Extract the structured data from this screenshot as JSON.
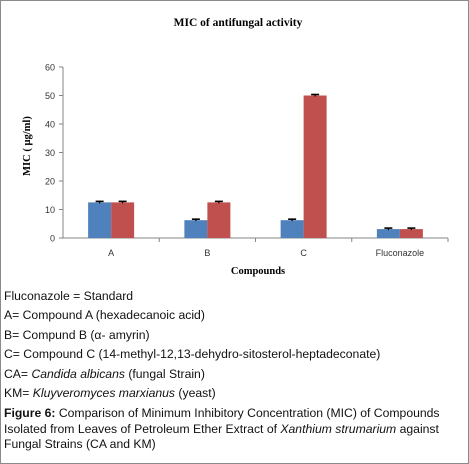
{
  "chart_data": {
    "type": "bar",
    "title": "MIC of antifungal activity",
    "xlabel": "Compounds",
    "ylabel": "MIC ( µg/ml)",
    "categories": [
      "A",
      "B",
      "C",
      "Fluconazole"
    ],
    "series": [
      {
        "values": [
          12.5,
          6.25,
          6.25,
          3.125
        ],
        "color": "#4f81bd"
      },
      {
        "values": [
          12.5,
          12.5,
          50,
          3.125
        ],
        "color": "#c0504d"
      }
    ],
    "ylim": [
      0,
      60
    ],
    "yticks": [
      "0",
      "10",
      "20",
      "30",
      "40",
      "50",
      "60"
    ],
    "error_bars": true,
    "grid": false,
    "legend": "none"
  },
  "captions": {
    "line1": "Fluconazole = Standard",
    "line2": "A= Compound A (hexadecanoic acid)",
    "line3": "B= Compund B (α- amyrin)",
    "line4": "C= Compound C (14-methyl-12,13-dehydro-sitosterol-heptadeconate)",
    "line5_prefix": "CA= ",
    "line5_italic": "Candida albicans",
    "line5_suffix": " (fungal Strain)",
    "line6_prefix": " KM= ",
    "line6_italic": "Kluyveromyces marxianus",
    "line6_suffix": " (yeast)"
  },
  "figure_caption": {
    "label": "Figure 6:",
    "text_before": " Comparison of Minimum Inhibitory Concentration (MIC) of Compounds Isolated from Leaves of Petroleum Ether Extract of ",
    "italic": "Xanthium strumarium",
    "text_after": " against Fungal Strains (CA and KM)"
  }
}
